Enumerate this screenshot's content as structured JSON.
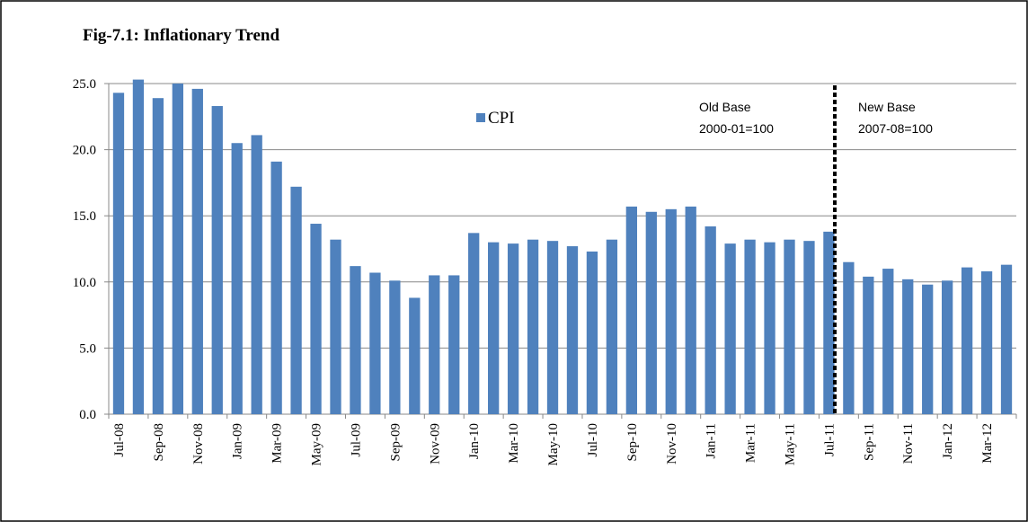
{
  "chart_data": {
    "type": "bar",
    "title": "Fig-7.1: Inflationary Trend",
    "categories": [
      "Jul-08",
      null,
      "Sep-08",
      null,
      "Nov-08",
      null,
      "Jan-09",
      null,
      "Mar-09",
      null,
      "May-09",
      null,
      "Jul-09",
      null,
      "Sep-09",
      null,
      "Nov-09",
      null,
      "Jan-10",
      null,
      "Mar-10",
      null,
      "May-10",
      null,
      "Jul-10",
      null,
      "Sep-10",
      null,
      "Nov-10",
      null,
      "Jan-11",
      null,
      "Mar-11",
      null,
      "May-11",
      null,
      "Jul-11",
      null,
      "Sep-11",
      null,
      "Nov-11",
      null,
      "Jan-12",
      null,
      "Mar-12",
      null
    ],
    "series": [
      {
        "name": "CPI",
        "color": "#4f81bd",
        "values": [
          24.3,
          25.3,
          23.9,
          25.0,
          24.6,
          23.3,
          20.5,
          21.1,
          19.1,
          17.2,
          14.4,
          13.2,
          11.2,
          10.7,
          10.1,
          8.8,
          10.5,
          10.5,
          13.7,
          13.0,
          12.9,
          13.2,
          13.1,
          12.7,
          12.3,
          13.2,
          15.7,
          15.3,
          15.5,
          15.7,
          14.2,
          12.9,
          13.2,
          13.0,
          13.2,
          13.1,
          13.8,
          11.5,
          10.4,
          11.0,
          10.2,
          9.8,
          10.1,
          11.1,
          10.8,
          11.3
        ]
      }
    ],
    "ylim": [
      0,
      25
    ],
    "yticks": [
      {
        "value": 0,
        "label": "0.0"
      },
      {
        "value": 5,
        "label": "5.0"
      },
      {
        "value": 10,
        "label": "10.0"
      },
      {
        "value": 15,
        "label": "15.0"
      },
      {
        "value": 20,
        "label": "20.0"
      },
      {
        "value": 25,
        "label": "25.0"
      }
    ],
    "grid": true,
    "annotations": [
      {
        "lines": [
          "Old Base",
          "2000-01=100"
        ]
      },
      {
        "lines": [
          "New Base",
          "2007-08=100"
        ]
      }
    ]
  }
}
